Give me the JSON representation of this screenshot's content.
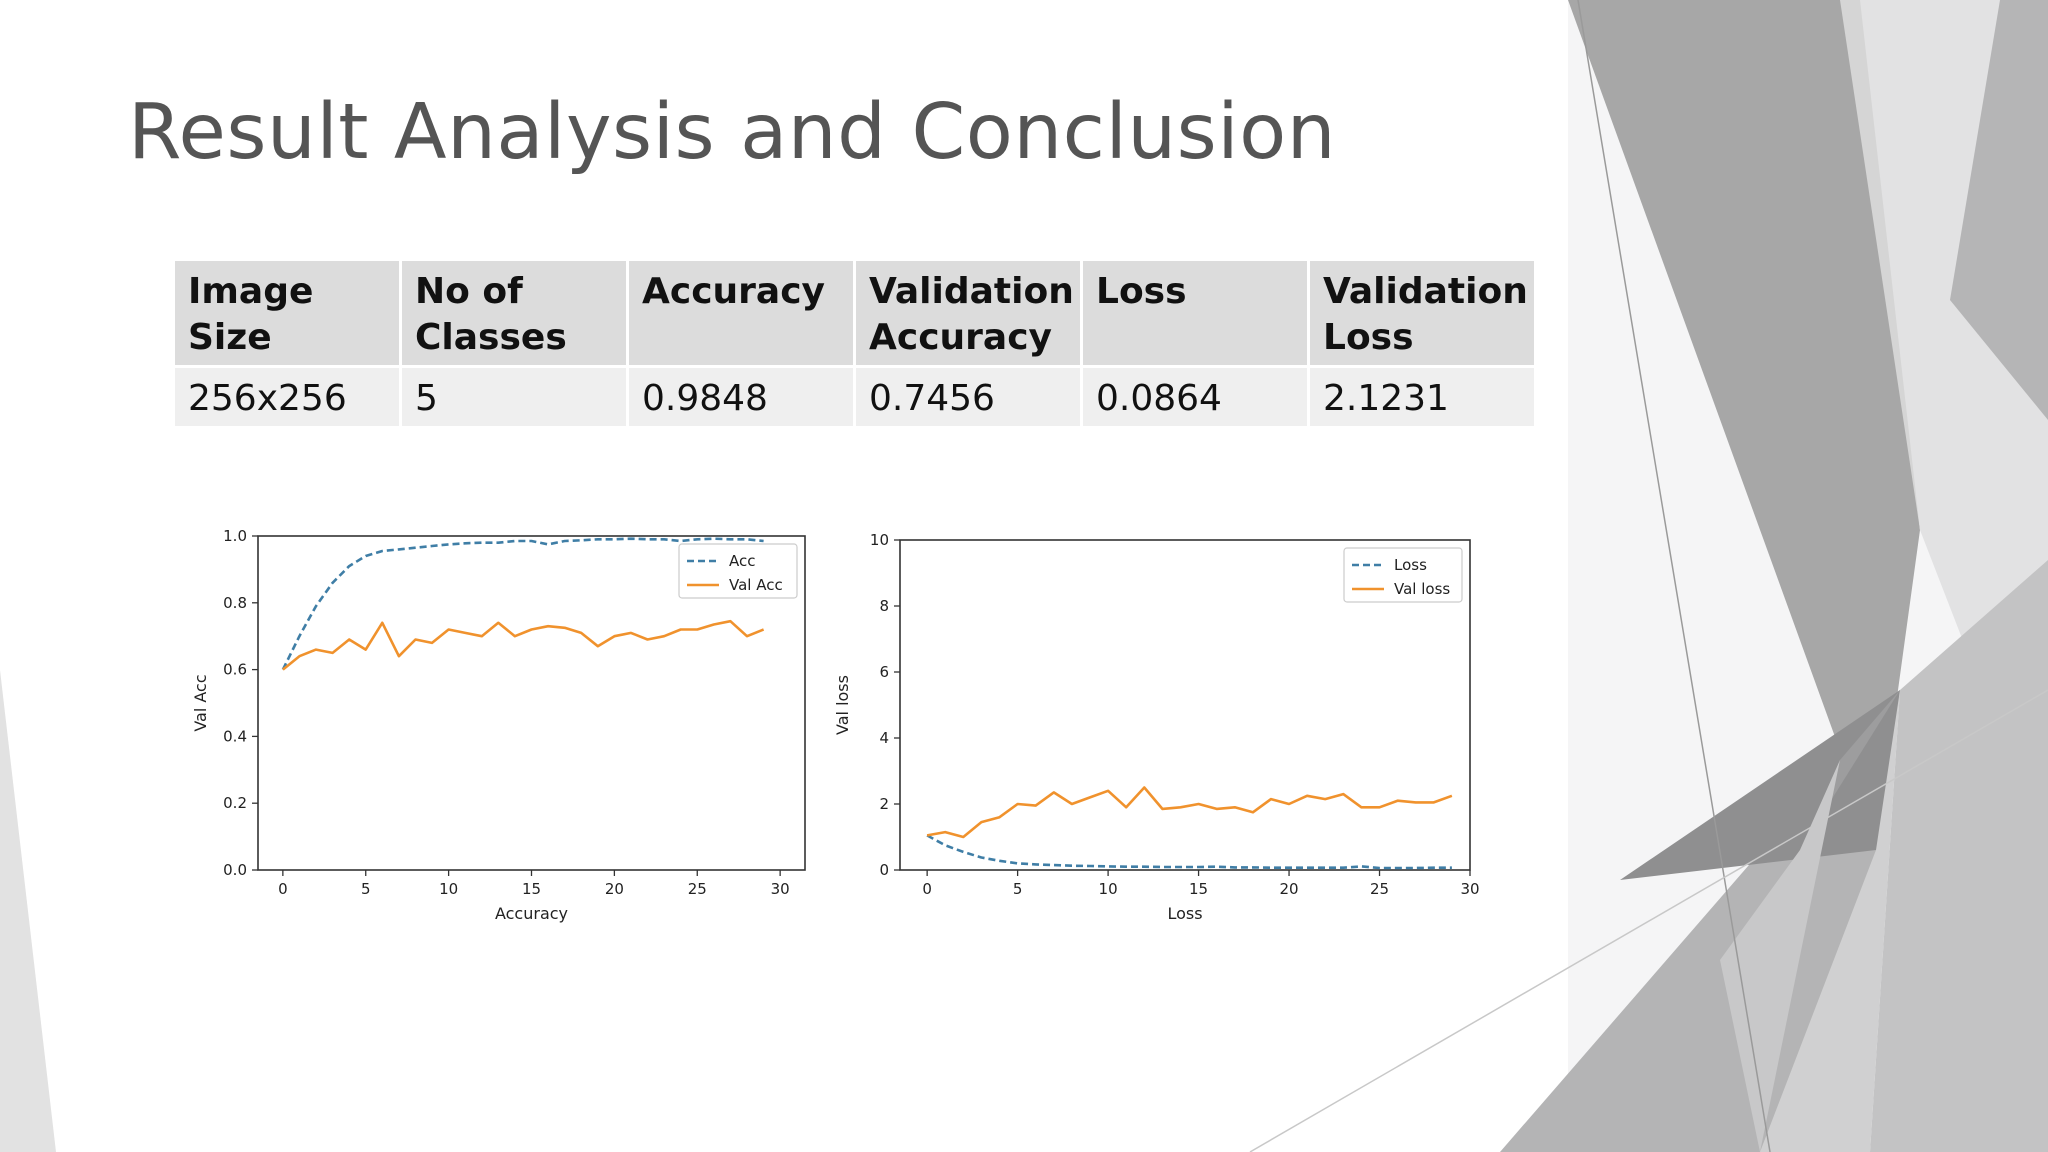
{
  "slide": {
    "title": "Result Analysis and Conclusion"
  },
  "table": {
    "headers": [
      "Image Size",
      "No of Classes",
      "Accuracy",
      "Validation Accuracy",
      "Loss",
      "Validation Loss"
    ],
    "rows": [
      [
        "256x256",
        "5",
        "0.9848",
        "0.7456",
        "0.0864",
        "2.1231"
      ]
    ]
  },
  "chart_data": [
    {
      "type": "line",
      "xlabel": "Accuracy",
      "ylabel": "Val Acc",
      "xlim": [
        -1.5,
        31.5
      ],
      "ylim": [
        0,
        1.0
      ],
      "xticks": [
        0,
        5,
        10,
        15,
        20,
        25,
        30
      ],
      "yticks": [
        0.0,
        0.2,
        0.4,
        0.6,
        0.8,
        1.0
      ],
      "ytick_labels": [
        "0.0",
        "0.2",
        "0.4",
        "0.6",
        "0.8",
        "1.0"
      ],
      "legend_position": "top-right",
      "x": [
        0,
        1,
        2,
        3,
        4,
        5,
        6,
        7,
        8,
        9,
        10,
        11,
        12,
        13,
        14,
        15,
        16,
        17,
        18,
        19,
        20,
        21,
        22,
        23,
        24,
        25,
        26,
        27,
        28,
        29
      ],
      "series": [
        {
          "name": "Acc",
          "color": "#3f7ea6",
          "style": "dashed",
          "values": [
            0.6,
            0.7,
            0.79,
            0.86,
            0.91,
            0.94,
            0.955,
            0.96,
            0.965,
            0.97,
            0.975,
            0.978,
            0.98,
            0.98,
            0.985,
            0.985,
            0.975,
            0.985,
            0.987,
            0.99,
            0.99,
            0.992,
            0.99,
            0.99,
            0.985,
            0.99,
            0.992,
            0.99,
            0.99,
            0.985
          ]
        },
        {
          "name": "Val Acc",
          "color": "#f0922d",
          "style": "solid",
          "values": [
            0.6,
            0.64,
            0.66,
            0.65,
            0.69,
            0.66,
            0.74,
            0.64,
            0.69,
            0.68,
            0.72,
            0.71,
            0.7,
            0.74,
            0.7,
            0.72,
            0.73,
            0.725,
            0.71,
            0.67,
            0.7,
            0.71,
            0.69,
            0.7,
            0.72,
            0.72,
            0.735,
            0.745,
            0.7,
            0.72
          ]
        }
      ]
    },
    {
      "type": "line",
      "xlabel": "Loss",
      "ylabel": "Val loss",
      "xlim": [
        -1.5,
        30
      ],
      "ylim": [
        0,
        10
      ],
      "xticks": [
        0,
        5,
        10,
        15,
        20,
        25,
        30
      ],
      "yticks": [
        0,
        2,
        4,
        6,
        8,
        10
      ],
      "ytick_labels": [
        "0",
        "2",
        "4",
        "6",
        "8",
        "10"
      ],
      "legend_position": "top-right",
      "x": [
        0,
        1,
        2,
        3,
        4,
        5,
        6,
        7,
        8,
        9,
        10,
        11,
        12,
        13,
        14,
        15,
        16,
        17,
        18,
        19,
        20,
        21,
        22,
        23,
        24,
        25,
        26,
        27,
        28,
        29
      ],
      "series": [
        {
          "name": "Loss",
          "color": "#3f7ea6",
          "style": "dashed",
          "values": [
            1.05,
            0.75,
            0.55,
            0.38,
            0.28,
            0.2,
            0.17,
            0.15,
            0.13,
            0.12,
            0.11,
            0.1,
            0.1,
            0.09,
            0.09,
            0.09,
            0.1,
            0.08,
            0.08,
            0.07,
            0.07,
            0.07,
            0.07,
            0.07,
            0.11,
            0.06,
            0.06,
            0.06,
            0.07,
            0.07
          ]
        },
        {
          "name": "Val loss",
          "color": "#f0922d",
          "style": "solid",
          "values": [
            1.05,
            1.15,
            1.0,
            1.45,
            1.6,
            2.0,
            1.95,
            2.35,
            2.0,
            2.2,
            2.4,
            1.9,
            2.5,
            1.85,
            1.9,
            2.0,
            1.85,
            1.9,
            1.75,
            2.15,
            2.0,
            2.25,
            2.15,
            2.3,
            1.9,
            1.9,
            2.1,
            2.05,
            2.05,
            2.25
          ]
        }
      ]
    }
  ]
}
